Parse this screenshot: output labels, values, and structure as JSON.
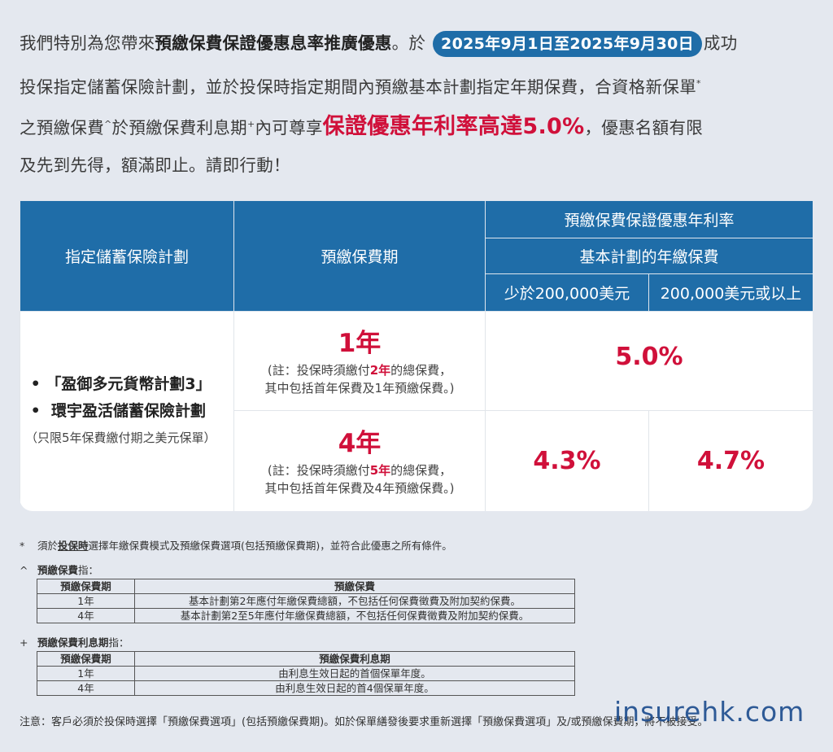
{
  "intro": {
    "l1_a": "我們特別為您帶來",
    "l1_bold": "預繳保費保證優惠息率推廣優惠",
    "l1_b": "。於",
    "date_range": "2025年9月1日至2025年9月30日",
    "l1_c": "成功",
    "l2": "投保指定儲蓄保險計劃，並於投保時指定期間內預繳基本計劃指定年期保費，合資格新保單",
    "l2_sup": "*",
    "l3_a": "之預繳保費",
    "l3_sup1": "^",
    "l3_b": "於預繳保費利息期",
    "l3_sup2": "+",
    "l3_c": "內可尊享",
    "l3_highlight": "保證優惠年利率高達5.0%",
    "l3_d": "，優惠名額有限",
    "l4": "及先到先得，額滿即止。請即行動！"
  },
  "main_table": {
    "col_plan": "指定儲蓄保險計劃",
    "col_period": "預繳保費期",
    "col_rate_group": "預繳保費保證優惠年利率",
    "col_rate_sub": "基本計劃的年繳保費",
    "col_tier1": "少於200,000美元",
    "col_tier2": "200,000美元或以上",
    "plans": [
      "「盈御多元貨幣計劃3」",
      "環宇盈活儲蓄保險計劃"
    ],
    "plans_note": "（只限5年保費繳付期之美元保單）",
    "rows": [
      {
        "year": "1年",
        "note_a": "(註：投保時須繳付",
        "note_hl": "2年",
        "note_b": "的總保費，",
        "note_c": "其中包括首年保費及1年預繳保費。)",
        "rate_all": "5.0%"
      },
      {
        "year": "4年",
        "note_a": "(註：投保時須繳付",
        "note_hl": "5年",
        "note_b": "的總保費，",
        "note_c": "其中包括首年保費及4年預繳保費。)",
        "rate_tier1": "4.3%",
        "rate_tier2": "4.7%"
      }
    ]
  },
  "footnotes": {
    "star_mark": "*",
    "star_a": "須於",
    "star_bold": "投保時",
    "star_b": "選擇年繳保費模式及預繳保費選項(包括預繳保費期)，並符合此優惠之所有條件。",
    "caret_mark": "^",
    "caret_title": "預繳保費",
    "caret_suffix": "指：",
    "caret_table": {
      "headers": [
        "預繳保費期",
        "預繳保費"
      ],
      "rows": [
        [
          "1年",
          "基本計劃第2年應付年繳保費總額，不包括任何保費徵費及附加契約保費。"
        ],
        [
          "4年",
          "基本計劃第2至5年應付年繳保費總額，不包括任何保費徵費及附加契約保費。"
        ]
      ]
    },
    "plus_mark": "+",
    "plus_title": "預繳保費利息期",
    "plus_suffix": "指：",
    "plus_table": {
      "headers": [
        "預繳保費期",
        "預繳保費利息期"
      ],
      "rows": [
        [
          "1年",
          "由利息生效日起的首個保單年度。"
        ],
        [
          "4年",
          "由利息生效日起的首4個保單年度。"
        ]
      ]
    },
    "bottom_note": "注意：客戶必須於投保時選擇「預繳保費選項」(包括預繳保費期)。如於保單繕發後要求重新選擇「預繳保費選項」及/或預繳保費期，將不被接受。"
  },
  "watermark": "insurehk.com"
}
